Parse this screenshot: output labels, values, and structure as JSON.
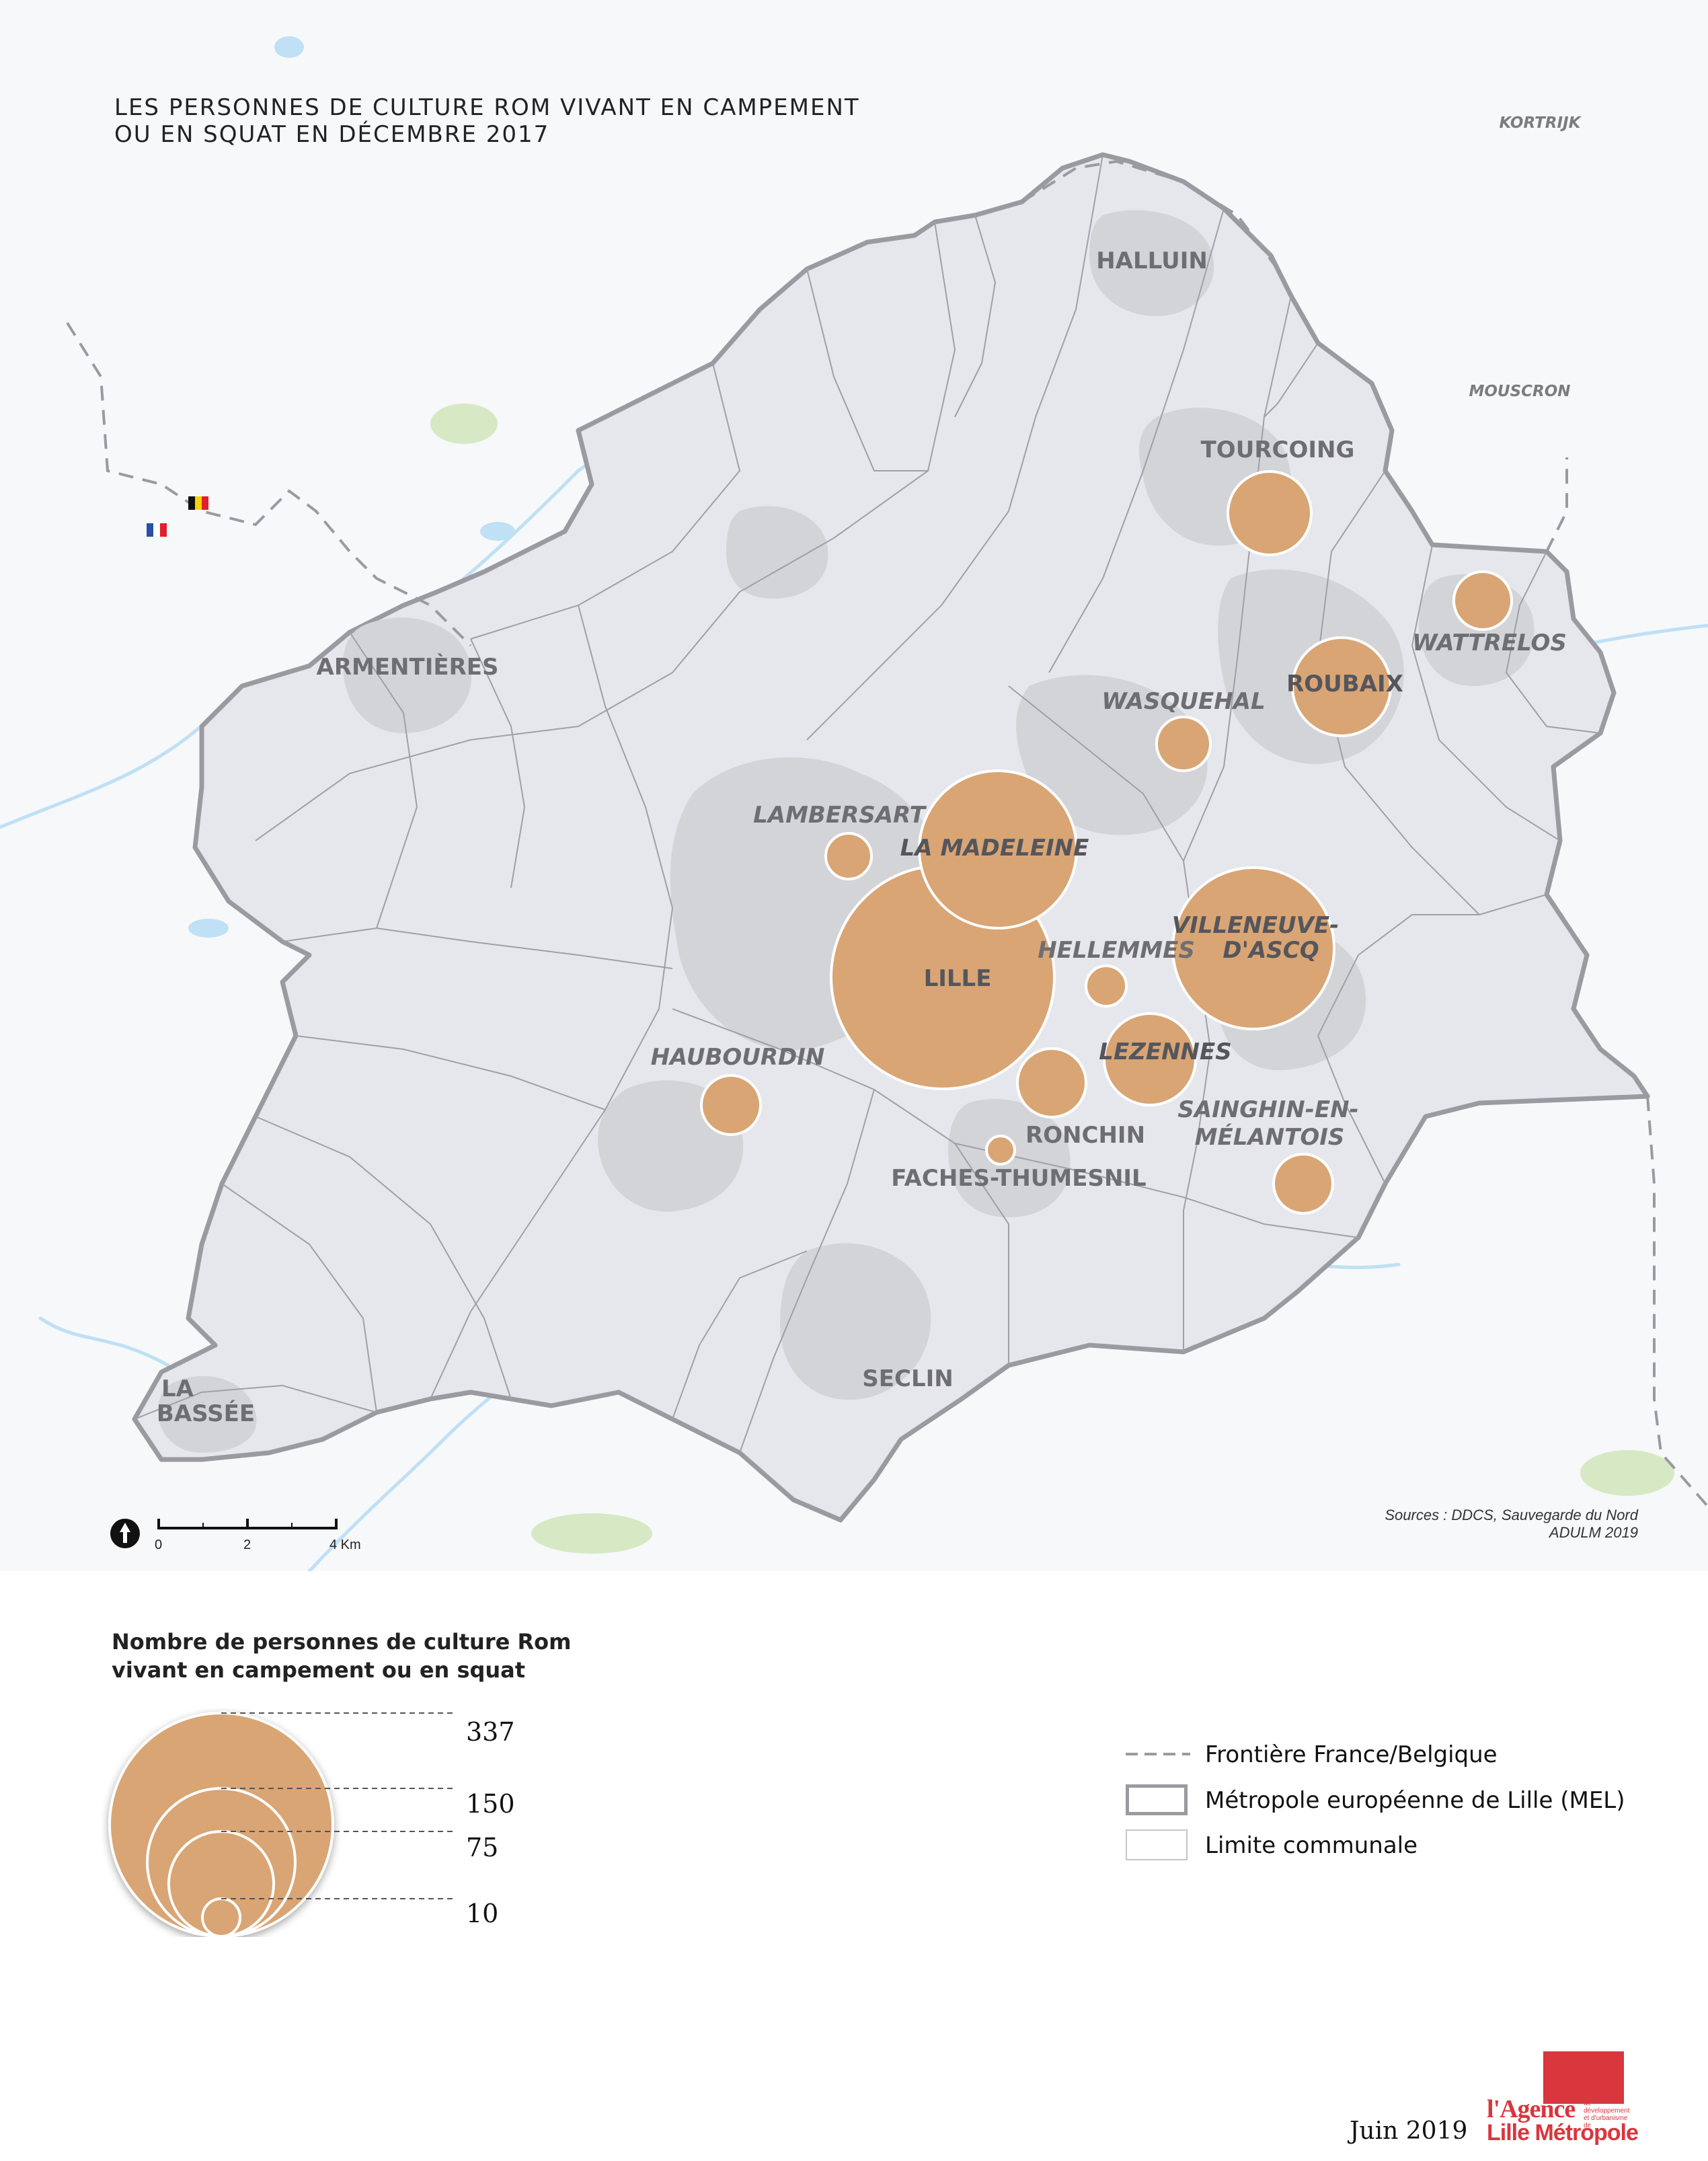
{
  "title": {
    "line1": "LES PERSONNES DE CULTURE ROM VIVANT EN CAMPEMENT",
    "line2": "OU EN SQUAT EN DÉCEMBRE 2017"
  },
  "colors": {
    "circle_fill": "#d9a574",
    "mel_fill": "#e6e7ec",
    "urban_fill": "#d3d4d8",
    "water": "#bfe0f5",
    "green": "#d6e9c4",
    "border_line": "#9a9aa0"
  },
  "foreign_labels": {
    "kortrijk": "KORTRIJK",
    "mouscron": "MOUSCRON"
  },
  "communes": {
    "halluin": "HALLUIN",
    "tourcoing": "TOURCOING",
    "wattrelos": "WATTRELOS",
    "roubaix": "ROUBAIX",
    "wasquehal": "WASQUEHAL",
    "armentieres": "ARMENTIÈRES",
    "lambersart": "LAMBERSART",
    "la_madeleine": "LA MADELEINE",
    "villeneuve_1": "VILLENEUVE-",
    "villeneuve_2": "D'ASCQ",
    "hellemmes": "HELLEMMES",
    "lille": "LILLE",
    "haubourdin": "HAUBOURDIN",
    "lezennes": "LEZENNES",
    "sainghin_1": "SAINGHIN-EN-",
    "sainghin_2": "MÉLANTOIS",
    "ronchin": "RONCHIN",
    "faches": "FACHES-THUMESNIL",
    "seclin": "SECLIN",
    "la_bassee_1": "LA",
    "la_bassee_2": "BASSÉE"
  },
  "sources": {
    "line1": "Sources : DDCS, Sauvegarde du Nord",
    "line2": "ADULM 2019"
  },
  "scale": {
    "v0": "0",
    "v2": "2",
    "v4": "4 Km"
  },
  "legend": {
    "title_line1": "Nombre de personnes de culture Rom",
    "title_line2": "vivant en campement ou en squat",
    "values": [
      "337",
      "150",
      "75",
      "10"
    ],
    "items": {
      "border": "Frontière France/Belgique",
      "mel": "Métropole européenne de Lille (MEL)",
      "commune": "Limite communale"
    }
  },
  "footer": {
    "date": "Juin 2019"
  },
  "logo": {
    "line1": "l'Agence",
    "line2": "Lille Métropole",
    "small": "de développement et d'urbanisme de"
  }
}
